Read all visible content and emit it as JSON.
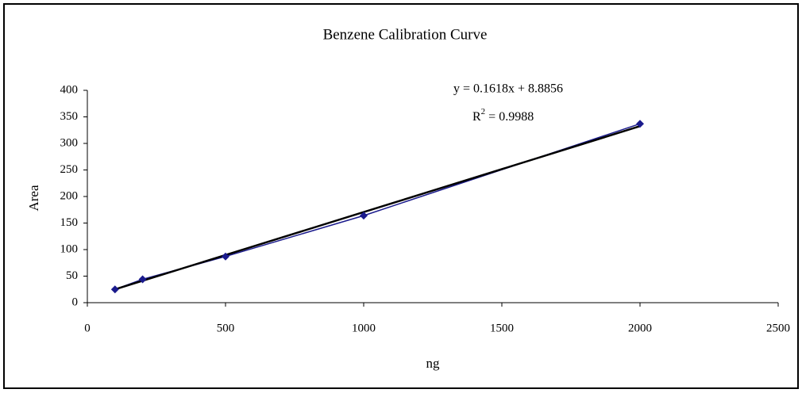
{
  "chart_data": {
    "type": "line",
    "title": "Benzene Calibration Curve",
    "x_label": "ng",
    "y_label": "Area",
    "x": [
      100,
      200,
      500,
      1000,
      2000
    ],
    "values": [
      25,
      44,
      87,
      164,
      337
    ],
    "color": "#1a1a8c",
    "trendline": {
      "slope": 0.1618,
      "intercept": 8.8856,
      "color": "#000000"
    },
    "equation": "y = 0.1618x + 8.8856",
    "r_squared": {
      "base": "R",
      "sup": "2",
      "rest": "= 0.9988"
    },
    "xlim": [
      0,
      2500
    ],
    "xticks": [
      0,
      500,
      1000,
      1500,
      2000,
      2500
    ],
    "ylim": [
      0,
      400
    ],
    "yticks": [
      0,
      50,
      100,
      150,
      200,
      250,
      300,
      350,
      400
    ],
    "grid": false
  }
}
